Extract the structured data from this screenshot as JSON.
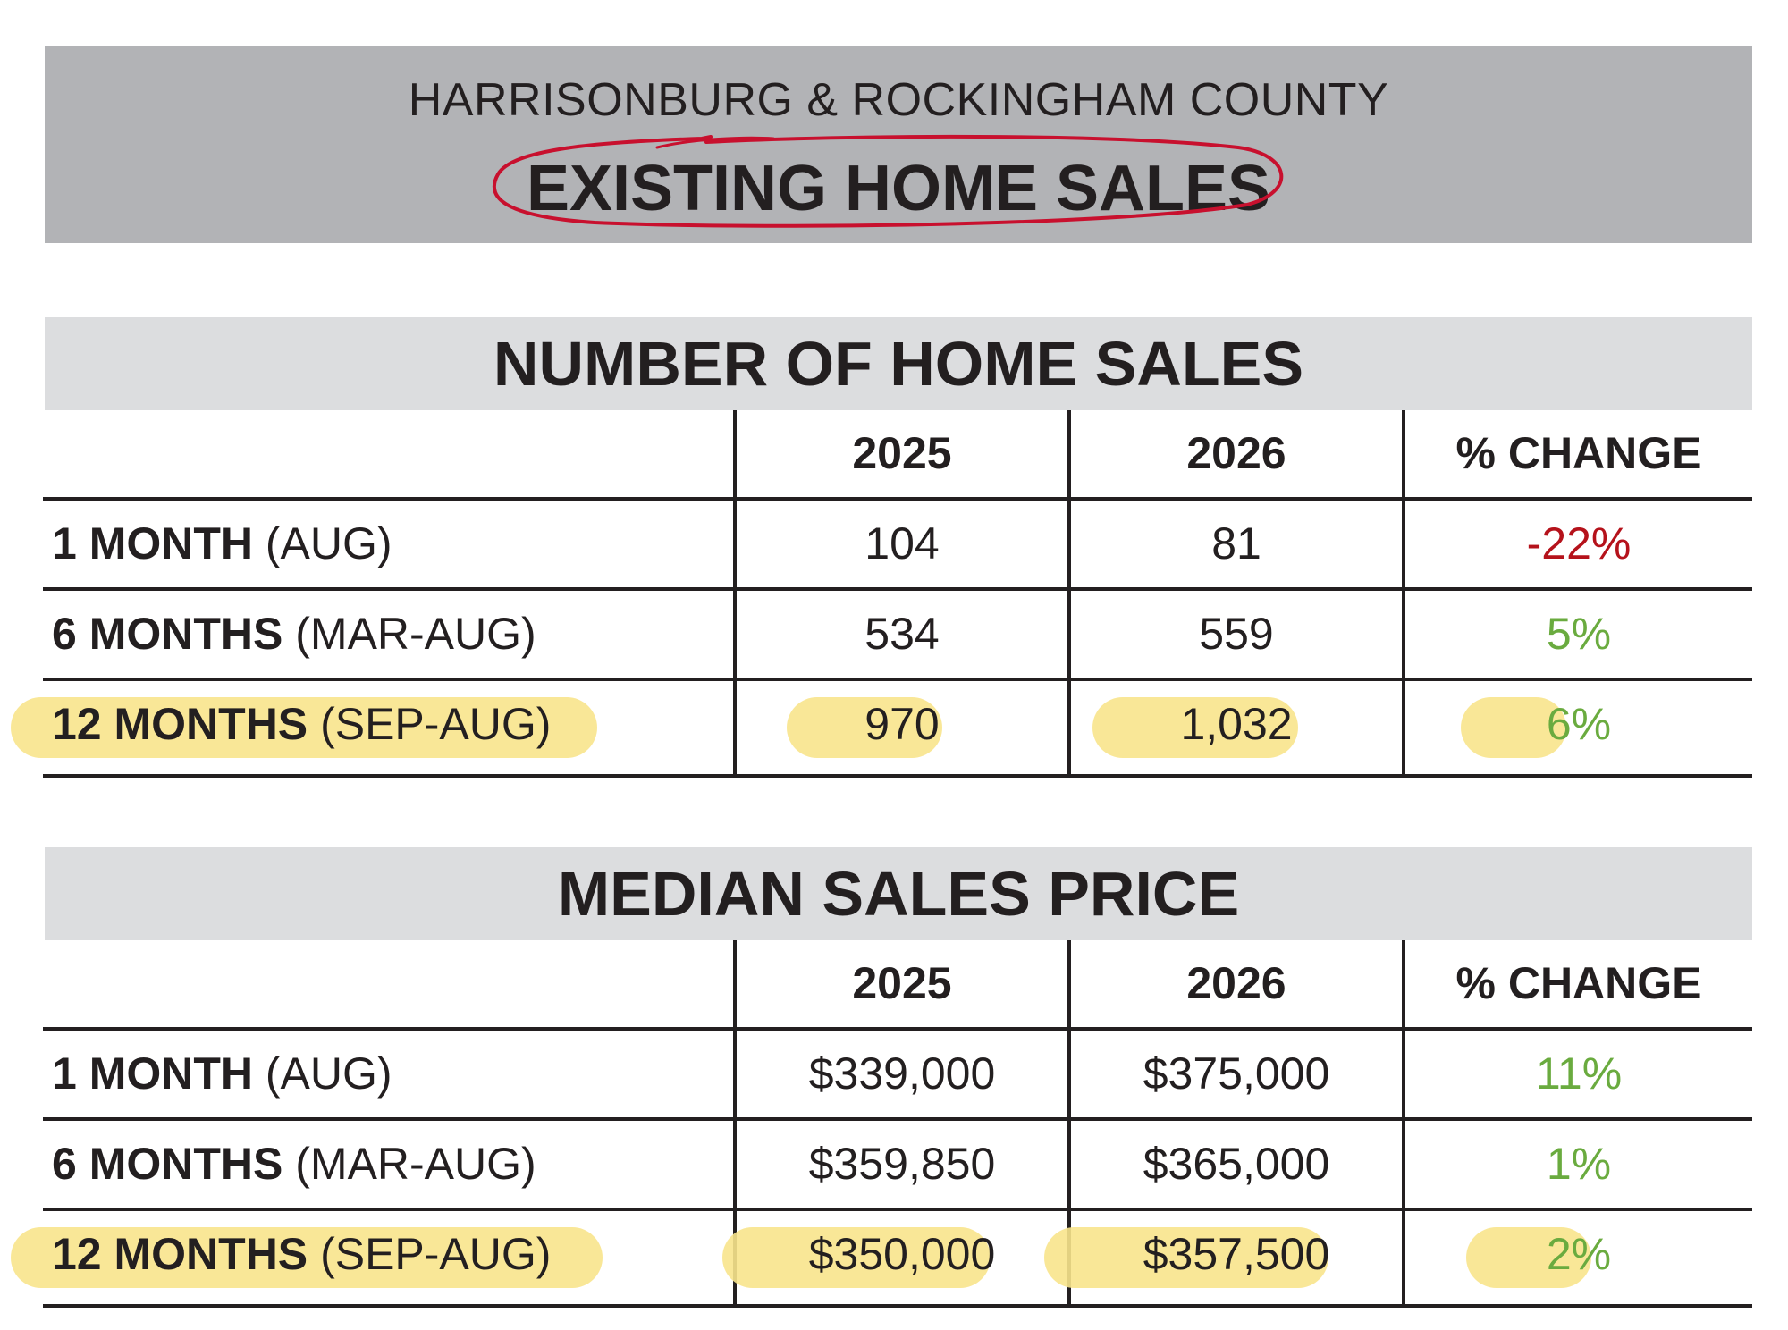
{
  "banner": {
    "subtitle": "HARRISONBURG & ROCKINGHAM COUNTY",
    "title": "EXISTING HOME SALES"
  },
  "colors": {
    "banner_bg": "#b2b3b6",
    "section_bg": "#dcdddf",
    "negative": "#b5121b",
    "positive": "#6aab3f",
    "highlight": "#f8e48c",
    "annotation_circle": "#c8102e"
  },
  "tables": [
    {
      "title": "NUMBER OF HOME SALES",
      "headers": [
        "",
        "2025",
        "2026",
        "% CHANGE"
      ],
      "rows": [
        {
          "period": "1 MONTH",
          "range": "(AUG)",
          "y2025": "104",
          "y2026": "81",
          "change": "-22%",
          "direction": "negative",
          "highlighted": false
        },
        {
          "period": "6 MONTHS",
          "range": "(MAR-AUG)",
          "y2025": "534",
          "y2026": "559",
          "change": "5%",
          "direction": "positive",
          "highlighted": false
        },
        {
          "period": "12 MONTHS",
          "range": "(SEP-AUG)",
          "y2025": "970",
          "y2026": "1,032",
          "change": "6%",
          "direction": "positive",
          "highlighted": true
        }
      ]
    },
    {
      "title": "MEDIAN SALES PRICE",
      "headers": [
        "",
        "2025",
        "2026",
        "% CHANGE"
      ],
      "rows": [
        {
          "period": "1 MONTH",
          "range": "(AUG)",
          "y2025": "$339,000",
          "y2026": "$375,000",
          "change": "11%",
          "direction": "positive",
          "highlighted": false
        },
        {
          "period": "6 MONTHS",
          "range": "(MAR-AUG)",
          "y2025": "$359,850",
          "y2026": "$365,000",
          "change": "1%",
          "direction": "positive",
          "highlighted": false
        },
        {
          "period": "12 MONTHS",
          "range": "(SEP-AUG)",
          "y2025": "$350,000",
          "y2026": "$357,500",
          "change": "2%",
          "direction": "positive",
          "highlighted": true
        }
      ]
    }
  ]
}
